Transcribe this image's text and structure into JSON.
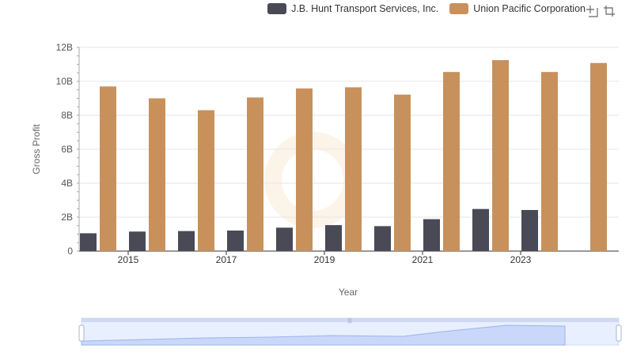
{
  "chart_data": {
    "type": "bar",
    "xlabel": "Year",
    "ylabel": "Gross Profit",
    "ylim": [
      0,
      12000000000
    ],
    "yticks": [
      "0",
      "2B",
      "4B",
      "6B",
      "8B",
      "10B",
      "12B"
    ],
    "categories": [
      "2014",
      "2015",
      "2016",
      "2017",
      "2018",
      "2019",
      "2020",
      "2021",
      "2022",
      "2023",
      "2024"
    ],
    "xtick_labels": [
      "2015",
      "2017",
      "2019",
      "2021",
      "2023"
    ],
    "grid": true,
    "legend_position": "top-right",
    "series": [
      {
        "name": "J.B. Hunt Transport Services, Inc.",
        "color": "#4a4a56",
        "values": [
          1050000000,
          1150000000,
          1180000000,
          1210000000,
          1380000000,
          1530000000,
          1470000000,
          1880000000,
          2480000000,
          2420000000,
          null
        ]
      },
      {
        "name": "Union Pacific Corporation",
        "color": "#c8915c",
        "values": [
          9700000000,
          9000000000,
          8300000000,
          9050000000,
          9580000000,
          9650000000,
          9220000000,
          10550000000,
          11250000000,
          10550000000,
          11080000000
        ]
      }
    ]
  },
  "toolbox": {
    "zoom_icon": "zoom-select-icon",
    "reset_icon": "zoom-reset-icon"
  }
}
